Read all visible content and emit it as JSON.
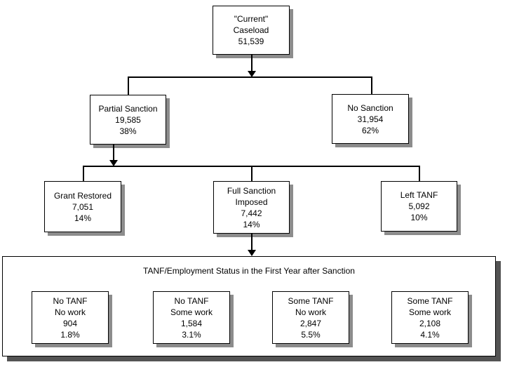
{
  "colors": {
    "page_bg": "#ffffff",
    "box_fill": "#ffffff",
    "box_border": "#000000",
    "line_color": "#000000",
    "shadow_small": "#8c8c8c",
    "shadow_container": "#545454"
  },
  "icons": {
    "arrow_down_icon": "solid black triangle pointing down"
  },
  "flowchart": {
    "nodes": {
      "current_caseload": {
        "lines": [
          "\"Current\"",
          "Caseload",
          "51,539"
        ]
      },
      "partial_sanction": {
        "lines": [
          "Partial Sanction",
          "19,585",
          "38%"
        ]
      },
      "no_sanction": {
        "lines": [
          "No Sanction",
          "31,954",
          "62%"
        ]
      },
      "grant_restored": {
        "lines": [
          "Grant Restored",
          "7,051",
          "14%"
        ]
      },
      "full_sanction_imposed": {
        "lines": [
          "Full Sanction",
          "Imposed",
          "7,442",
          "14%"
        ]
      },
      "left_tanf": {
        "lines": [
          "Left TANF",
          "5,092",
          "10%"
        ]
      }
    },
    "first_year_section": {
      "title": "TANF/Employment Status in the First Year after Sanction",
      "boxes": [
        {
          "lines": [
            "No TANF",
            "No work",
            "904",
            "1.8%"
          ]
        },
        {
          "lines": [
            "No TANF",
            "Some work",
            "1,584",
            "3.1%"
          ]
        },
        {
          "lines": [
            "Some TANF",
            "No work",
            "2,847",
            "5.5%"
          ]
        },
        {
          "lines": [
            "Some TANF",
            "Some work",
            "2,108",
            "4.1%"
          ]
        }
      ]
    }
  }
}
